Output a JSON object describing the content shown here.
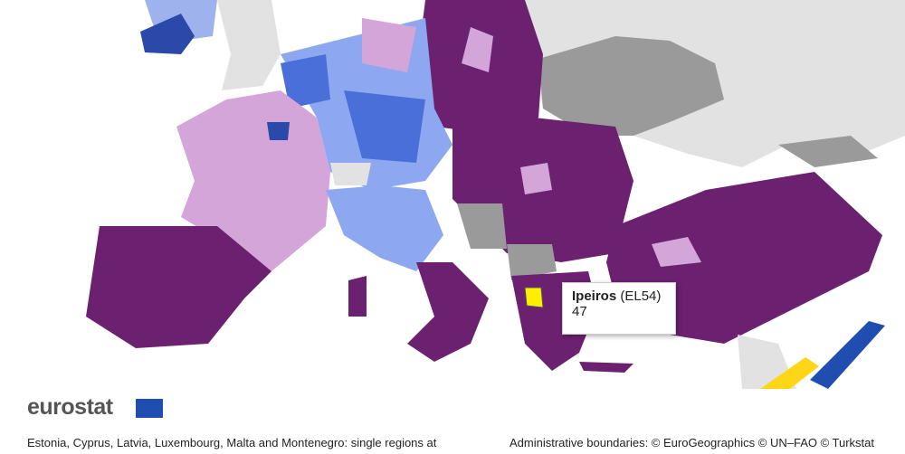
{
  "tooltip": {
    "region": "Ipeiros",
    "code": "(EL54)",
    "value": 47
  },
  "logo": "eurostat",
  "footnote": "Estonia, Cyprus, Latvia, Luxembourg, Malta and Montenegro: single regions at",
  "credits": "Administrative boundaries: © EuroGeographics © UN–FAO © Turkstat"
}
